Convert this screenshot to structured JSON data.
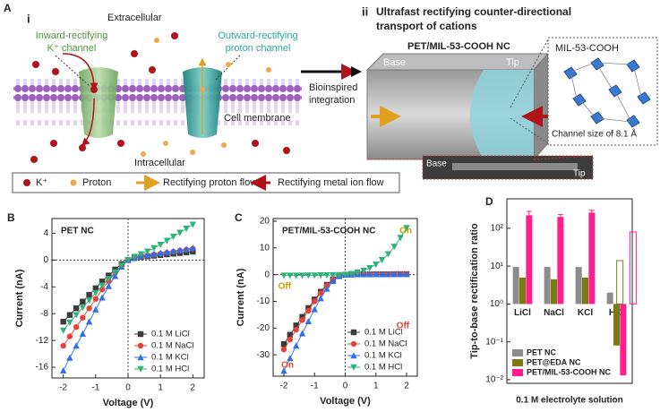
{
  "panel_a": {
    "label": "A",
    "sub_i": "i",
    "extracellular": "Extracellular",
    "inward_channel": [
      "Inward-rectifying",
      "K⁺ channel"
    ],
    "outward_channel": [
      "Outward-rectifying",
      "proton channel"
    ],
    "cell_membrane": "Cell membrane",
    "intracellular": "Intracellular",
    "legend": [
      "K⁺",
      "Proton",
      "Rectifying proton flow",
      "Rectifying metal ion flow"
    ],
    "integration": [
      "Bioinspired",
      "integration"
    ],
    "sub_ii": "ii",
    "heading": [
      "Ultrafast rectifying counter-directional",
      "transport of cations"
    ],
    "device": "PET/MIL-53-COOH NC",
    "base": "Base",
    "tip": "Tip",
    "mof": "MIL-53-COOH",
    "channel_size": "Channel size of 8.1 Å",
    "sem_base": "Base",
    "sem_tip": "Tip"
  },
  "chart_data": [
    {
      "type": "line",
      "panel": "B",
      "title": "PET NC",
      "xlabel": "Voltage (V)",
      "ylabel": "Current (nA)",
      "x": [
        -2,
        -1.8,
        -1.6,
        -1.4,
        -1.2,
        -1,
        -0.8,
        -0.6,
        -0.4,
        -0.2,
        0,
        0.2,
        0.4,
        0.6,
        0.8,
        1,
        1.2,
        1.4,
        1.6,
        1.8,
        2
      ],
      "xlim": [
        -2.35,
        2.35
      ],
      "xticks": [
        -2,
        -1,
        0,
        1,
        2
      ],
      "ylim": [
        -17.6,
        6.2
      ],
      "yticks": [
        -16,
        -12,
        -8,
        -4,
        0,
        4
      ],
      "zero_lines": true,
      "legend": "lower right",
      "series": [
        {
          "name": "0.1 M LiCl",
          "color": "#3a3a3a",
          "marker": "square",
          "values": [
            -9.2,
            -8.2,
            -7.2,
            -6.2,
            -5.2,
            -4.2,
            -3.2,
            -2.3,
            -1.4,
            -0.6,
            0,
            0.3,
            0.45,
            0.55,
            0.65,
            0.75,
            0.85,
            0.95,
            1.05,
            1.15,
            1.25
          ]
        },
        {
          "name": "0.1 M NaCl",
          "color": "#e8413c",
          "marker": "circle",
          "values": [
            -12.8,
            -11.4,
            -10,
            -8.6,
            -7.2,
            -5.8,
            -4.4,
            -3.1,
            -1.9,
            -0.8,
            0,
            0.35,
            0.5,
            0.65,
            0.8,
            0.95,
            1.1,
            1.25,
            1.4,
            1.55,
            1.7
          ]
        },
        {
          "name": "0.1 M KCl",
          "color": "#2f6fe8",
          "marker": "triangle-up",
          "values": [
            -16.5,
            -14.6,
            -12.8,
            -11,
            -9.2,
            -7.4,
            -5.6,
            -3.9,
            -2.4,
            -1,
            0,
            0.4,
            0.6,
            0.75,
            0.9,
            1.05,
            1.2,
            1.35,
            1.5,
            1.65,
            1.8
          ]
        },
        {
          "name": "0.1 M HCl",
          "color": "#2db37a",
          "marker": "triangle-down",
          "values": [
            -10.5,
            -9.3,
            -8.2,
            -7.1,
            -6,
            -4.9,
            -3.8,
            -2.8,
            -1.8,
            -0.8,
            0,
            0.5,
            0.9,
            1.3,
            1.8,
            2.3,
            2.9,
            3.5,
            4.1,
            4.7,
            5.3
          ]
        }
      ]
    },
    {
      "type": "line",
      "panel": "C",
      "title": "PET/MIL-53-COOH NC",
      "xlabel": "Voltage (V)",
      "ylabel": "Current (nA)",
      "x": [
        -2,
        -1.8,
        -1.6,
        -1.4,
        -1.2,
        -1,
        -0.8,
        -0.6,
        -0.4,
        -0.2,
        0,
        0.2,
        0.4,
        0.6,
        0.8,
        1,
        1.2,
        1.4,
        1.6,
        1.8,
        2
      ],
      "xlim": [
        -2.35,
        2.35
      ],
      "xticks": [
        -2,
        -1,
        0,
        1,
        2
      ],
      "ylim": [
        -38,
        21
      ],
      "yticks": [
        -30,
        -20,
        -10,
        0,
        10,
        20
      ],
      "zero_lines": true,
      "legend": "lower right",
      "annotations": [
        {
          "text": "On",
          "color": "#c9a000"
        },
        {
          "text": "Off",
          "color": "#c9a000"
        },
        {
          "text": "Off",
          "color": "#e8413c"
        },
        {
          "text": "On",
          "color": "#e8413c"
        }
      ],
      "series": [
        {
          "name": "0.1 M LiCl",
          "color": "#3a3a3a",
          "marker": "square",
          "values": [
            -26,
            -22.5,
            -19,
            -15.8,
            -12.5,
            -9.3,
            -6.4,
            -3.8,
            -1.8,
            -0.5,
            0,
            0.05,
            0.1,
            0.1,
            0.1,
            0.15,
            0.15,
            0.15,
            0.2,
            0.2,
            0.2
          ]
        },
        {
          "name": "0.1 M NaCl",
          "color": "#e8413c",
          "marker": "circle",
          "values": [
            -28,
            -24.3,
            -20.6,
            -17,
            -13.5,
            -10,
            -6.9,
            -4.1,
            -1.9,
            -0.5,
            0,
            0.05,
            0.1,
            0.1,
            0.1,
            0.15,
            0.15,
            0.15,
            0.2,
            0.2,
            0.2
          ]
        },
        {
          "name": "0.1 M KCl",
          "color": "#2f6fe8",
          "marker": "triangle-up",
          "values": [
            -36,
            -31.3,
            -26.6,
            -22,
            -17.5,
            -13,
            -8.9,
            -5.3,
            -2.4,
            -0.6,
            0,
            0.05,
            0.1,
            0.1,
            0.1,
            0.15,
            0.15,
            0.15,
            0.2,
            0.2,
            0.2
          ]
        },
        {
          "name": "0.1 M HCl",
          "color": "#2db37a",
          "marker": "triangle-down",
          "values": [
            -0.3,
            -0.3,
            -0.3,
            -0.3,
            -0.25,
            -0.25,
            -0.2,
            -0.2,
            -0.15,
            -0.1,
            0,
            0.3,
            0.8,
            1.5,
            2.5,
            3.8,
            5.5,
            7.7,
            10.5,
            13.8,
            17.5
          ]
        }
      ]
    },
    {
      "type": "bar",
      "panel": "D",
      "ylabel": "Tip-to-base rectification ratio",
      "xlabel": "0.1 M electrolyte solution",
      "categories": [
        "LiCl",
        "NaCl",
        "KCl",
        "HCl"
      ],
      "log_scale": true,
      "ylim": [
        0.008,
        600
      ],
      "yticks": [
        {
          "value": 0.01,
          "label": "10⁻²"
        },
        {
          "value": 0.1,
          "label": "10⁻¹"
        },
        {
          "value": 1,
          "label": "10⁰"
        },
        {
          "value": 10,
          "label": "10¹"
        },
        {
          "value": 100,
          "label": "10²"
        }
      ],
      "legend": "lower left",
      "series": [
        {
          "name": "PET NC",
          "color": "#8c8c8c",
          "values": [
            9.5,
            9.5,
            9.5,
            2
          ]
        },
        {
          "name": "PET@EDA NC",
          "color": "#7a7a12",
          "values": [
            5,
            4.5,
            5,
            0.08
          ],
          "outline_values": [
            null,
            null,
            null,
            14
          ]
        },
        {
          "name": "PET/MIL-53-COOH NC",
          "color": "#ff1e8c",
          "values": [
            220,
            200,
            260,
            0.013
          ],
          "errors": [
            60,
            30,
            40,
            null
          ],
          "outline_values": [
            null,
            null,
            null,
            80
          ]
        }
      ]
    }
  ]
}
